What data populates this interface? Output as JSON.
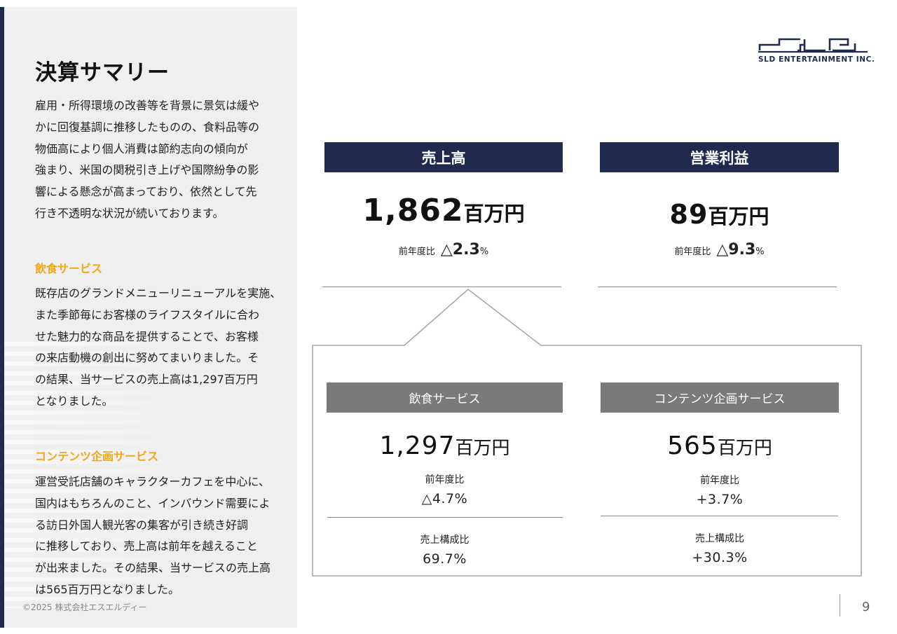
{
  "summary": {
    "title": "決算サマリー",
    "intro": [
      "雇用・所得環境の改善等を背景に景気は緩や",
      "かに回復基調に推移したものの、食料品等の",
      "物価高により個人消費は節約志向の傾向が",
      "強まり、米国の関税引き上げや国際紛争の影",
      "響による懸念が高まっており、依然として先",
      "行き不透明な状況が続いております。"
    ],
    "food": {
      "heading": "飲食サービス",
      "lines": [
        "既存店のグランドメニューリニューアルを実施、",
        "また季節毎にお客様のライフスタイルに合わ",
        "せた魅力的な商品を提供することで、お客様",
        "の来店動機の創出に努めてまいりました。そ",
        "の結果、当サービスの売上高は1,297百万円",
        "となりました。"
      ]
    },
    "content": {
      "heading": "コンテンツ企画サービス",
      "lines": [
        "運営受託店舗のキャラクターカフェを中心に、",
        "国内はもちろんのこと、インバウンド需要によ",
        "る訪日外国人観光客の集客が引き続き好調",
        "に推移しており、売上高は前年を越えること",
        "が出来ました。その結果、当サービスの売上高",
        "は565百万円となりました。"
      ]
    },
    "copyright": "©2025  株式会社エスエルディー"
  },
  "logo": {
    "text": "SLD ENTERTAINMENT INC."
  },
  "sales": {
    "label": "売上高",
    "value": "1,862",
    "unit": "百万円",
    "yoy_label": "前年度比",
    "yoy_value": "△2.3",
    "yoy_unit": "%"
  },
  "profit": {
    "label": "営業利益",
    "value": "89",
    "unit": "百万円",
    "yoy_label": "前年度比",
    "yoy_value": "△9.3",
    "yoy_unit": "%"
  },
  "food_service": {
    "label": "飲食サービス",
    "value": "1,297",
    "unit": "百万円",
    "yoy_label": "前年度比",
    "yoy_value": "△4.7%",
    "share_label": "売上構成比",
    "share_value": "69.7%"
  },
  "content_service": {
    "label": "コンテンツ企画サービス",
    "value": "565",
    "unit": "百万円",
    "yoy_label": "前年度比",
    "yoy_value": "+3.7%",
    "share_label": "売上構成比",
    "share_value": "+30.3%"
  },
  "page": {
    "number": "9"
  },
  "colors": {
    "navy": "#1f2a4e",
    "accent": "#f0a818",
    "gray": "#7a7a7a"
  }
}
